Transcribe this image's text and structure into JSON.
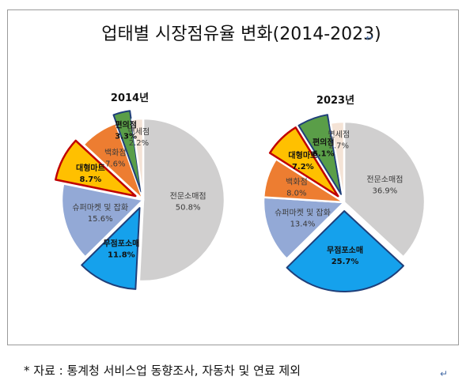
{
  "title": "업태별 시장점유율 변화(2014-2023)",
  "paragraph_mark": "↵",
  "source_note": "* 자료 : 통계청 서비스업 동향조사, 자동차 및 연료 제외",
  "chart_data": [
    {
      "type": "pie",
      "title": "2014년",
      "unit": "%",
      "slices": [
        {
          "name": "전문소매점",
          "value": 50.8,
          "label": "50.8%",
          "color": "#d0cfcf",
          "exploded": false,
          "highlight": false
        },
        {
          "name": "무점포소매",
          "value": 11.8,
          "label": "11.8%",
          "color": "#15a1ec",
          "exploded": true,
          "highlight": false
        },
        {
          "name": "슈퍼마켓 및 잡화",
          "value": 15.6,
          "label": "15.6%",
          "color": "#93a9d6",
          "exploded": false,
          "highlight": false
        },
        {
          "name": "대형마트",
          "value": 8.7,
          "label": "8.7%",
          "color": "#ffc000",
          "exploded": true,
          "highlight": true
        },
        {
          "name": "백화점",
          "value": 7.6,
          "label": "7.6%",
          "color": "#ed7d31",
          "exploded": false,
          "highlight": false
        },
        {
          "name": "편의점",
          "value": 3.3,
          "label": "3.3%",
          "color": "#5a9e48",
          "exploded": true,
          "highlight": false
        },
        {
          "name": "면세점",
          "value": 2.2,
          "label": "2.2%",
          "color": "#f4e3d6",
          "exploded": false,
          "highlight": false
        }
      ]
    },
    {
      "type": "pie",
      "title": "2023년",
      "unit": "%",
      "slices": [
        {
          "name": "전문소매점",
          "value": 36.9,
          "label": "36.9%",
          "color": "#d0cfcf",
          "exploded": false,
          "highlight": false
        },
        {
          "name": "무점포소매",
          "value": 25.7,
          "label": "25.7%",
          "color": "#15a1ec",
          "exploded": true,
          "highlight": false
        },
        {
          "name": "슈퍼마켓 및 잡화",
          "value": 13.4,
          "label": "13.4%",
          "color": "#93a9d6",
          "exploded": false,
          "highlight": false
        },
        {
          "name": "백화점",
          "value": 8.0,
          "label": "8.0%",
          "color": "#ed7d31",
          "exploded": false,
          "highlight": false
        },
        {
          "name": "대형마트",
          "value": 7.2,
          "label": "7.2%",
          "color": "#ffc000",
          "exploded": true,
          "highlight": true
        },
        {
          "name": "편의점",
          "value": 6.1,
          "label": "6.1%",
          "color": "#5a9e48",
          "exploded": true,
          "highlight": false
        },
        {
          "name": "면세점",
          "value": 2.7,
          "label": "2.7%",
          "color": "#f4e3d6",
          "exploded": false,
          "highlight": false
        }
      ]
    }
  ]
}
